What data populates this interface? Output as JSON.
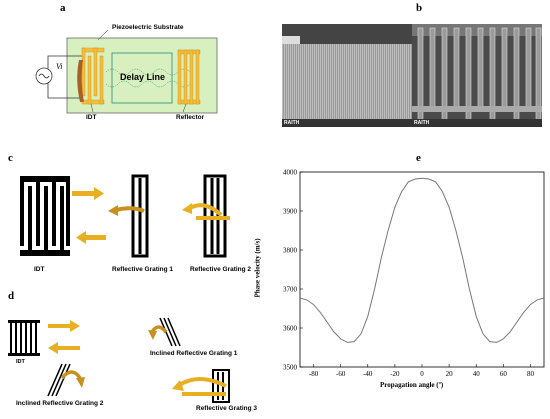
{
  "panels": {
    "a": "a",
    "b": "b",
    "c": "c",
    "d": "d",
    "e": "e"
  },
  "panel_a": {
    "substrate_label": "Piezoelectric Substrate",
    "source_label": "Vi",
    "delay_line_label": "Delay Line",
    "idt_label": "IDT",
    "reflector_label": "Reflector"
  },
  "panel_b": {
    "sem_left_brand": "RAITH",
    "sem_right_brand": "RAITH"
  },
  "panel_c": {
    "idt_label": "IDT",
    "grating1_label": "Reflective Grating 1",
    "grating2_label": "Reflective Grating 2"
  },
  "panel_d": {
    "idt_label": "IDT",
    "inclined1_label": "Inclined Reflective Grating 1",
    "inclined2_label": "Inclined Reflective Grating 2",
    "grating3_label": "Reflective Grating 3"
  },
  "colors": {
    "arrow": "#E8B020",
    "electrode_gold": "#F5BE3C",
    "substrate_green": "#D8F0C0",
    "brown": "#A8602A"
  },
  "chart_data": {
    "type": "line",
    "xlabel": "Propagation angle (º)",
    "ylabel": "Phase velocity (m/s)",
    "xlim": [
      -90,
      90
    ],
    "ylim": [
      3500,
      4000
    ],
    "xticks": [
      -80,
      -60,
      -40,
      -20,
      0,
      20,
      40,
      60,
      80
    ],
    "yticks": [
      3500,
      3600,
      3700,
      3800,
      3900,
      4000
    ],
    "grid": false,
    "x": [
      -90,
      -85,
      -80,
      -75,
      -70,
      -65,
      -60,
      -55,
      -50,
      -45,
      -40,
      -35,
      -30,
      -25,
      -20,
      -15,
      -10,
      -5,
      0,
      5,
      10,
      15,
      20,
      25,
      30,
      35,
      40,
      45,
      50,
      55,
      60,
      65,
      70,
      75,
      80,
      85,
      90
    ],
    "y": [
      3677,
      3672,
      3660,
      3640,
      3615,
      3590,
      3572,
      3563,
      3565,
      3585,
      3630,
      3700,
      3780,
      3850,
      3910,
      3950,
      3975,
      3982,
      3984,
      3982,
      3975,
      3950,
      3910,
      3850,
      3780,
      3700,
      3630,
      3585,
      3565,
      3563,
      3572,
      3590,
      3615,
      3640,
      3660,
      3672,
      3677
    ]
  }
}
